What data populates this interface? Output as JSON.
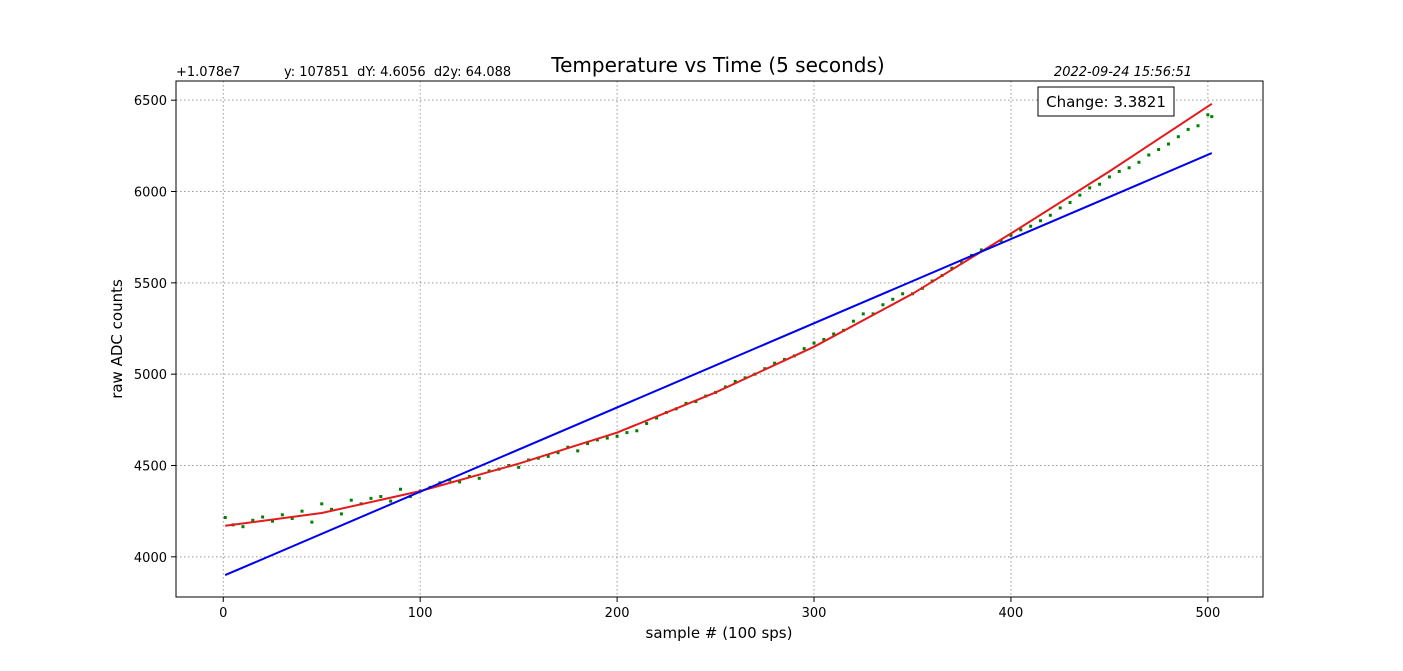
{
  "chart_data": {
    "type": "scatter",
    "title": "Temperature vs Time (5 seconds)",
    "xlabel": "sample # (100 sps)",
    "ylabel": "raw ADC counts",
    "offset_label": "+1.078e7",
    "stats_text": "y: 107851  dY: 4.6056  d2y: 64.088",
    "timestamp": "2022-09-24 15:56:51",
    "change_text": "Change: 3.3821",
    "xlim": [
      -24,
      528
    ],
    "ylim": [
      3780,
      6605
    ],
    "xticks": [
      0,
      100,
      200,
      300,
      400,
      500
    ],
    "xtick_labels": [
      "0",
      "100",
      "200",
      "300",
      "400",
      "500"
    ],
    "yticks": [
      4000,
      4500,
      5000,
      5500,
      6000,
      6500
    ],
    "ytick_labels": [
      "4000",
      "4500",
      "5000",
      "5500",
      "6000",
      "6500"
    ],
    "grid": true,
    "series": [
      {
        "type": "scatter",
        "color": "#008000",
        "x": [
          1,
          5,
          10,
          15,
          20,
          25,
          30,
          35,
          40,
          45,
          50,
          55,
          60,
          65,
          70,
          75,
          80,
          85,
          90,
          95,
          100,
          105,
          110,
          115,
          120,
          125,
          130,
          135,
          140,
          145,
          150,
          155,
          160,
          165,
          170,
          175,
          180,
          185,
          190,
          195,
          200,
          205,
          210,
          215,
          220,
          225,
          230,
          235,
          240,
          245,
          250,
          255,
          260,
          265,
          270,
          275,
          280,
          285,
          290,
          295,
          300,
          305,
          310,
          315,
          320,
          325,
          330,
          335,
          340,
          345,
          350,
          355,
          360,
          365,
          370,
          375,
          380,
          385,
          390,
          395,
          400,
          405,
          410,
          415,
          420,
          425,
          430,
          435,
          440,
          445,
          450,
          455,
          460,
          465,
          470,
          475,
          480,
          485,
          490,
          495,
          500,
          502
        ],
        "y": [
          4215,
          4175,
          4165,
          4200,
          4218,
          4195,
          4230,
          4210,
          4250,
          4190,
          4290,
          4260,
          4235,
          4310,
          4290,
          4320,
          4330,
          4305,
          4370,
          4330,
          4360,
          4380,
          4405,
          4420,
          4410,
          4440,
          4430,
          4470,
          4480,
          4500,
          4490,
          4530,
          4540,
          4550,
          4570,
          4600,
          4580,
          4620,
          4640,
          4650,
          4660,
          4680,
          4690,
          4730,
          4760,
          4790,
          4810,
          4840,
          4850,
          4880,
          4900,
          4930,
          4960,
          4980,
          5000,
          5030,
          5060,
          5080,
          5100,
          5140,
          5170,
          5190,
          5220,
          5240,
          5290,
          5330,
          5330,
          5380,
          5410,
          5440,
          5440,
          5470,
          5510,
          5540,
          5580,
          5610,
          5650,
          5680,
          5700,
          5730,
          5760,
          5790,
          5810,
          5840,
          5870,
          5910,
          5940,
          5980,
          6020,
          6040,
          6080,
          6110,
          6130,
          6160,
          6200,
          6230,
          6260,
          6300,
          6340,
          6360,
          6420,
          6410
        ]
      },
      {
        "type": "line",
        "color": "#e41a1c",
        "x": [
          1,
          50,
          100,
          150,
          200,
          250,
          300,
          350,
          400,
          450,
          502
        ],
        "y": [
          4170,
          4240,
          4360,
          4510,
          4680,
          4900,
          5150,
          5440,
          5770,
          6110,
          6480
        ]
      },
      {
        "type": "line",
        "color": "#0000ee",
        "x": [
          1,
          502
        ],
        "y": [
          3900,
          6210
        ]
      }
    ]
  }
}
